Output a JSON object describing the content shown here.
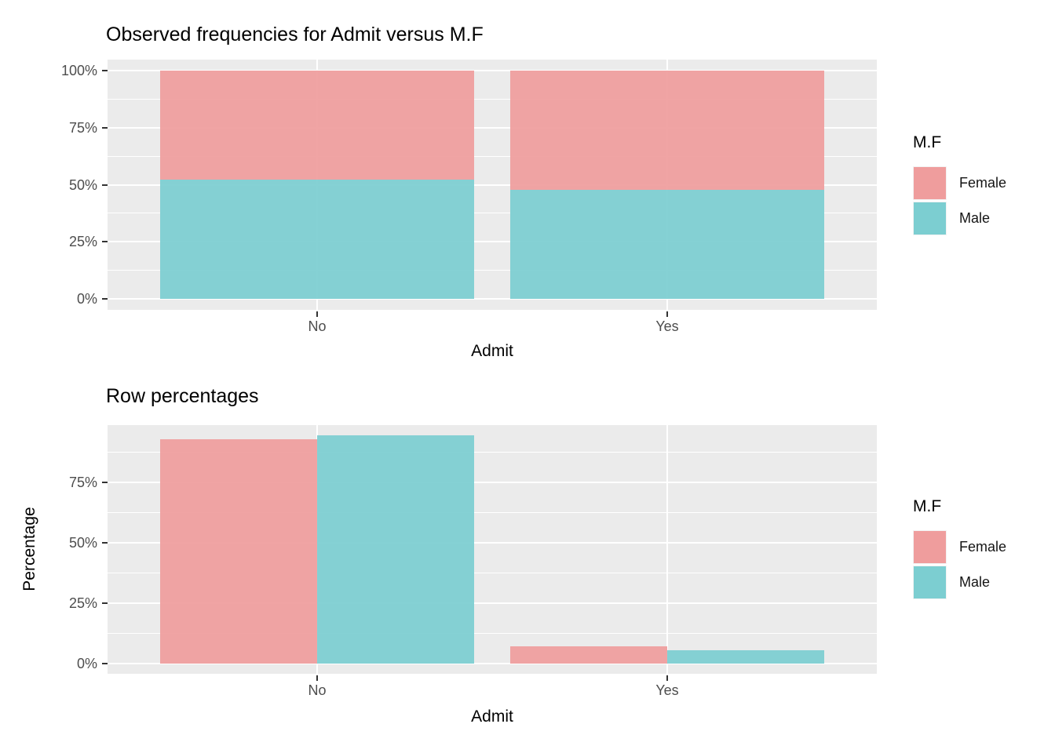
{
  "page": {
    "background": "#FFFFFF"
  },
  "colors": {
    "female": "#EF9D9D",
    "male": "#7CCED1",
    "panel_bg": "#EBEBEB",
    "gridline": "#FFFFFF",
    "tick_label": "#4D4D4D",
    "tick_mark": "#333333",
    "text": "#000000",
    "legend_key_bg": "#F2F2F2"
  },
  "chart_data": [
    {
      "type": "bar",
      "variant": "percent-stacked",
      "title": "Observed frequencies for Admit versus M.F",
      "xlabel": "Admit",
      "ylabel": "",
      "legend_title": "M.F",
      "legend_position": "right",
      "grid": true,
      "categories": [
        "No",
        "Yes"
      ],
      "series": [
        {
          "name": "Female",
          "color": "#EF9D9D",
          "values": [
            47.7,
            52.2
          ]
        },
        {
          "name": "Male",
          "color": "#7CCED1",
          "values": [
            52.3,
            47.8
          ]
        }
      ],
      "stack_order_top_to_bottom": [
        "Female",
        "Male"
      ],
      "ylim": [
        0,
        100
      ],
      "yticks": [
        {
          "value": 100,
          "label": "100%"
        },
        {
          "value": 75,
          "label": "75%"
        },
        {
          "value": 50,
          "label": "50%"
        },
        {
          "value": 25,
          "label": "25%"
        },
        {
          "value": 0,
          "label": "0%"
        }
      ]
    },
    {
      "type": "bar",
      "variant": "grouped",
      "title": "Row percentages",
      "xlabel": "Admit",
      "ylabel": "Percentage",
      "legend_title": "M.F",
      "legend_position": "right",
      "grid": true,
      "categories": [
        "No",
        "Yes"
      ],
      "series": [
        {
          "name": "Female",
          "color": "#EF9D9D",
          "values": [
            93,
            7
          ]
        },
        {
          "name": "Male",
          "color": "#7CCED1",
          "values": [
            94.5,
            5.5
          ]
        }
      ],
      "ylim": [
        0,
        100
      ],
      "yticks": [
        {
          "value": 75,
          "label": "75%"
        },
        {
          "value": 50,
          "label": "50%"
        },
        {
          "value": 25,
          "label": "25%"
        },
        {
          "value": 0,
          "label": "0%"
        }
      ]
    }
  ]
}
